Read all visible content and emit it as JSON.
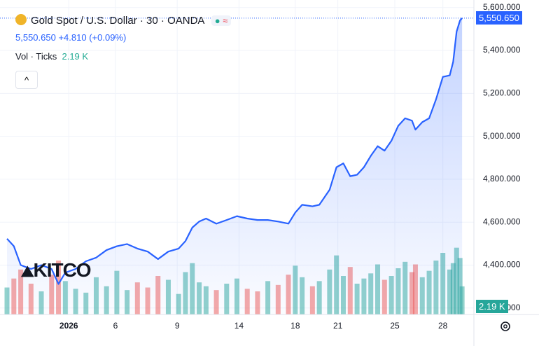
{
  "chart_data": {
    "type": "area",
    "title": "Gold Spot / U.S. Dollar · 30 · OANDA",
    "last": {
      "value": 5550.65,
      "label": "5,550.650"
    },
    "change": "+4.810 (+0.09%)",
    "volume_label": "Vol · Ticks",
    "volume_last": "2.19 K",
    "watermark": "KITCO",
    "color": "#2962ff",
    "x": [
      0,
      1,
      2,
      3.5,
      5,
      6.5,
      7.5,
      8.5,
      10,
      11.5,
      13,
      14.5,
      16,
      17.5,
      19,
      20.5,
      22,
      23.5,
      25,
      26,
      27,
      28,
      29,
      30.5,
      32,
      33.5,
      35,
      36.5,
      38,
      39.5,
      41,
      42,
      43,
      44.5,
      45.5,
      47,
      48,
      49,
      50,
      51,
      52,
      53,
      54,
      55,
      56,
      57,
      58,
      59,
      59.5,
      60.5,
      61.5,
      62.5,
      63.5,
      64.5,
      65,
      65.5,
      66,
      66.3
    ],
    "series": [
      {
        "name": "Gold Spot",
        "color": "#2962ff",
        "values": [
          4523,
          4488,
          4400,
          4382,
          4400,
          4382,
          4312,
          4365,
          4382,
          4418,
          4435,
          4470,
          4488,
          4498,
          4477,
          4463,
          4428,
          4463,
          4477,
          4512,
          4575,
          4603,
          4617,
          4593,
          4610,
          4628,
          4617,
          4610,
          4610,
          4603,
          4593,
          4645,
          4681,
          4674,
          4681,
          4751,
          4856,
          4874,
          4814,
          4821,
          4856,
          4909,
          4954,
          4933,
          4979,
          5049,
          5084,
          5073,
          5031,
          5066,
          5084,
          5172,
          5277,
          5284,
          5347,
          5488,
          5540,
          5550.65
        ]
      }
    ],
    "volume": {
      "ylim": [
        0,
        6
      ],
      "up_color": "rgba(38,166,154,0.5)",
      "down_color": "rgba(239,83,80,0.5)",
      "values": [
        2.1,
        2.8,
        3.5,
        2.4,
        1.8,
        3.1,
        4.2,
        2.6,
        2.0,
        1.7,
        2.9,
        2.2,
        3.4,
        1.9,
        2.5,
        2.1,
        3.0,
        2.7,
        1.6,
        3.3,
        4.0,
        2.5,
        2.2,
        1.9,
        2.4,
        2.8,
        2.0,
        1.8,
        2.6,
        2.3,
        3.1,
        3.8,
        2.9,
        2.2,
        2.6,
        3.5,
        4.6,
        3.0,
        3.7,
        2.4,
        2.8,
        3.2,
        3.9,
        2.7,
        3.0,
        3.6,
        4.1,
        3.3,
        3.9,
        2.9,
        3.4,
        4.2,
        4.8,
        3.5,
        4.0,
        5.2,
        4.4,
        2.19
      ]
    },
    "xlim": [
      0,
      67
    ],
    "ylim": [
      4170,
      5635
    ],
    "xticks": [
      {
        "value": 9,
        "label": "2026"
      },
      {
        "value": 15.8,
        "label": "6"
      },
      {
        "value": 24.8,
        "label": "9"
      },
      {
        "value": 33.8,
        "label": "14"
      },
      {
        "value": 42,
        "label": "18"
      },
      {
        "value": 48.2,
        "label": "21"
      },
      {
        "value": 56.5,
        "label": "25"
      },
      {
        "value": 63.5,
        "label": "28"
      }
    ],
    "yticks": [
      {
        "value": 4200,
        "label": "4,200.000"
      },
      {
        "value": 4400,
        "label": "4,400.000"
      },
      {
        "value": 4600,
        "label": "4,600.000"
      },
      {
        "value": 4800,
        "label": "4,800.000"
      },
      {
        "value": 5000,
        "label": "5,000.000"
      },
      {
        "value": 5200,
        "label": "5,200.000"
      },
      {
        "value": 5400,
        "label": "5,400.000"
      },
      {
        "value": 5600,
        "label": "5,600.000"
      }
    ],
    "grid": true
  }
}
